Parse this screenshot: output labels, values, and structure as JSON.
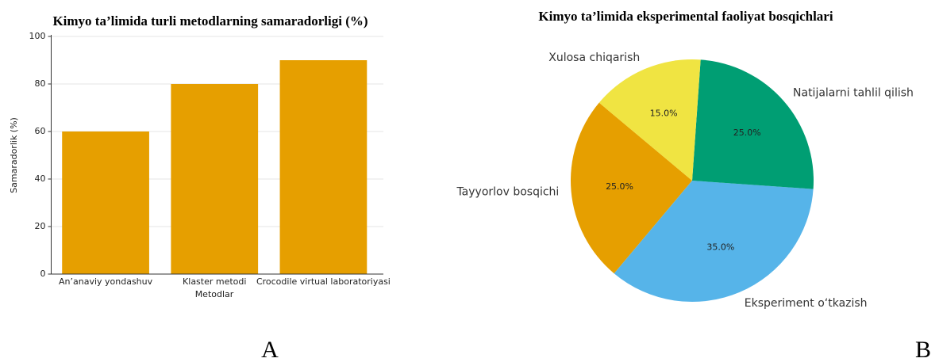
{
  "chart_data": [
    {
      "type": "bar",
      "title": "Kimyo ta’limida turli metodlarning samaradorligi (%)",
      "panel_label": "A",
      "xlabel": "Metodlar",
      "ylabel": "Samaradorlik (%)",
      "categories": [
        "An’anaviy yondashuv",
        "Klaster metodi",
        "Crocodile virtual laboratoriyasi"
      ],
      "values": [
        60,
        80,
        90
      ],
      "color": "#e69f00",
      "ylim": [
        0,
        100
      ],
      "yticks": [
        0,
        20,
        40,
        60,
        80,
        100
      ],
      "grid": true
    },
    {
      "type": "pie",
      "title": "Kimyo ta’limida eksperimental faoliyat bosqichlari",
      "panel_label": "B",
      "categories": [
        "Tayyorlov bosqichi",
        "Eksperiment o‘tkazish",
        "Natijalarni tahlil qilish",
        "Xulosa chiqarish"
      ],
      "values": [
        25,
        35,
        25,
        15
      ],
      "value_labels": [
        "25.0%",
        "35.0%",
        "25.0%",
        "15.0%"
      ],
      "colors": [
        "#e69f00",
        "#56b4e9",
        "#009e73",
        "#f0e442"
      ]
    }
  ]
}
